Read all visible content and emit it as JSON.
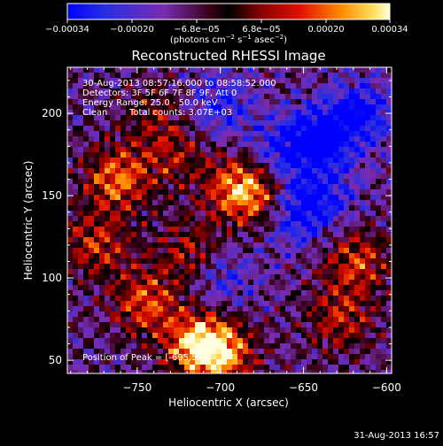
{
  "colorbar": {
    "tick_labels": [
      "−0.00034",
      "−0.00020",
      "−6.8e−05",
      "6.8e−05",
      "0.00020",
      "0.00034"
    ],
    "units_prefix": "(photons cm",
    "units_exp1": "−2",
    "units_mid1": " s",
    "units_exp2": "−1",
    "units_mid2": " asec",
    "units_exp3": "−2",
    "units_suffix": ")",
    "range": [
      -0.00034,
      0.00034
    ]
  },
  "annotation": {
    "time_range": "30-Aug-2013 08:57:16.000 to 08:58:52.000",
    "detectors": "Detectors: 3F 5F 6F 7F 8F 9F, Att 0",
    "energy": "Energy Range: 25.0 - 50.0 keV",
    "clean": "Clean",
    "total_counts": "Total counts: 3.07E+03",
    "peak": "Position of Peak = [-695,53]"
  },
  "timestamp": "31-Aug-2013 16:57",
  "colors": {
    "background": "#000000",
    "foreground": "#ffffff",
    "colormap": [
      "#0000ff",
      "#3b2fd6",
      "#6a2cc0",
      "#9c2f8c",
      "#1a0000",
      "#c40000",
      "#ff5a00",
      "#ffb400",
      "#ffffd0"
    ]
  },
  "chart_data": {
    "type": "heatmap",
    "title": "Reconstructed RHESSI Image",
    "xlabel": "Heliocentric X (arcsec)",
    "ylabel": "Heliocentric Y (arcsec)",
    "xlim": [
      -792,
      -597
    ],
    "ylim": [
      42,
      228
    ],
    "x_ticks": [
      -750,
      -700,
      -650,
      -600
    ],
    "x_tick_labels": [
      "−750",
      "−700",
      "−650",
      "−600"
    ],
    "y_ticks": [
      50,
      100,
      150,
      200
    ],
    "y_tick_labels": [
      "50",
      "100",
      "150",
      "200"
    ],
    "peak_position": [
      -695,
      53
    ],
    "hot_regions": [
      {
        "x": -762,
        "y": 160,
        "value": 0.0003
      },
      {
        "x": -775,
        "y": 120,
        "value": 0.00022
      },
      {
        "x": -745,
        "y": 85,
        "value": 0.00026
      },
      {
        "x": -700,
        "y": 55,
        "value": 0.00034
      },
      {
        "x": -715,
        "y": 60,
        "value": 0.0003
      },
      {
        "x": -690,
        "y": 155,
        "value": 0.00028
      },
      {
        "x": -675,
        "y": 150,
        "value": 0.00022
      },
      {
        "x": -718,
        "y": 115,
        "value": 0.0002
      },
      {
        "x": -728,
        "y": 175,
        "value": 0.00016
      },
      {
        "x": -618,
        "y": 110,
        "value": 0.00024
      },
      {
        "x": -628,
        "y": 75,
        "value": 0.0002
      },
      {
        "x": -740,
        "y": 200,
        "value": 0.00012
      }
    ],
    "cold_regions": [
      {
        "x": -640,
        "y": 185,
        "value": -0.0003
      },
      {
        "x": -655,
        "y": 140,
        "value": -0.00026
      },
      {
        "x": -615,
        "y": 200,
        "value": -0.00024
      },
      {
        "x": -700,
        "y": 205,
        "value": -0.00018
      },
      {
        "x": -665,
        "y": 175,
        "value": -0.0002
      },
      {
        "x": -700,
        "y": 100,
        "value": -0.00016
      },
      {
        "x": -635,
        "y": 150,
        "value": -0.00014
      }
    ]
  }
}
